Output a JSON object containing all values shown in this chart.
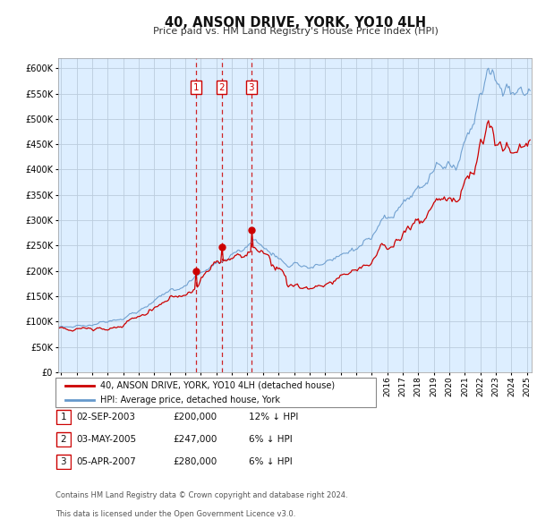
{
  "title": "40, ANSON DRIVE, YORK, YO10 4LH",
  "subtitle": "Price paid vs. HM Land Registry's House Price Index (HPI)",
  "legend_line1": "40, ANSON DRIVE, YORK, YO10 4LH (detached house)",
  "legend_line2": "HPI: Average price, detached house, York",
  "hpi_color": "#6699cc",
  "price_color": "#cc0000",
  "bg_color": "#ddeeff",
  "grid_color": "#bbccdd",
  "transactions": [
    {
      "num": 1,
      "date": "02-SEP-2003",
      "price": 200000,
      "hpi_diff": "12% ↓ HPI",
      "year": 2003.67
    },
    {
      "num": 2,
      "date": "03-MAY-2005",
      "price": 247000,
      "hpi_diff": "6% ↓ HPI",
      "year": 2005.33
    },
    {
      "num": 3,
      "date": "05-APR-2007",
      "price": 280000,
      "hpi_diff": "6% ↓ HPI",
      "year": 2007.25
    }
  ],
  "footer_line1": "Contains HM Land Registry data © Crown copyright and database right 2024.",
  "footer_line2": "This data is licensed under the Open Government Licence v3.0.",
  "ylim": [
    0,
    620000
  ],
  "yticks": [
    0,
    50000,
    100000,
    150000,
    200000,
    250000,
    300000,
    350000,
    400000,
    450000,
    500000,
    550000,
    600000
  ],
  "xlim_start": 1994.8,
  "xlim_end": 2025.3
}
